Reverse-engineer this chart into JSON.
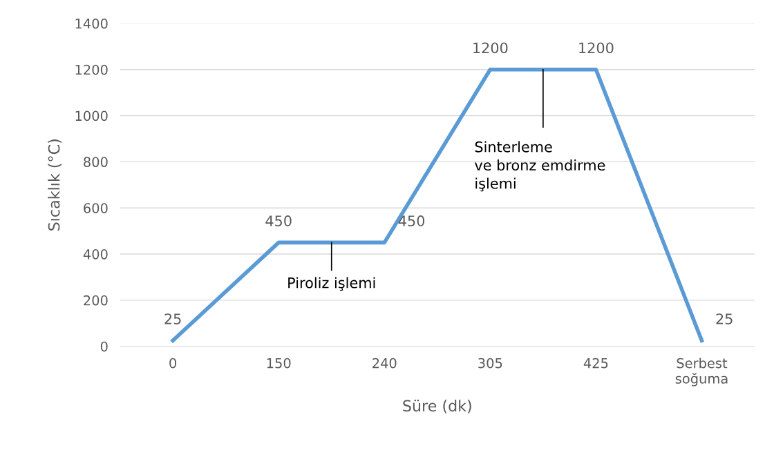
{
  "chart_data": {
    "type": "line",
    "xlabel": "Süre (dk)",
    "ylabel": "Sıcaklık (°C)",
    "categories": [
      "0",
      "150",
      "240",
      "305",
      "425",
      "Serbest\nsoğuma"
    ],
    "series": [
      {
        "color": "#5b9bd5",
        "values": [
          25,
          450,
          450,
          1200,
          1200,
          25
        ]
      }
    ],
    "ylim": [
      0,
      1400
    ],
    "yticks": [
      0,
      200,
      400,
      600,
      800,
      1000,
      1200,
      1400
    ],
    "grid": "y",
    "legend": false,
    "marker": "none",
    "line_style": "solid",
    "data_labels": true,
    "annotations": [
      {
        "text": "Piroliz işlemi",
        "y": 450
      },
      {
        "text": "Sinterleme\nve bronz emdirme\nişlemi",
        "y": 1200
      }
    ]
  }
}
